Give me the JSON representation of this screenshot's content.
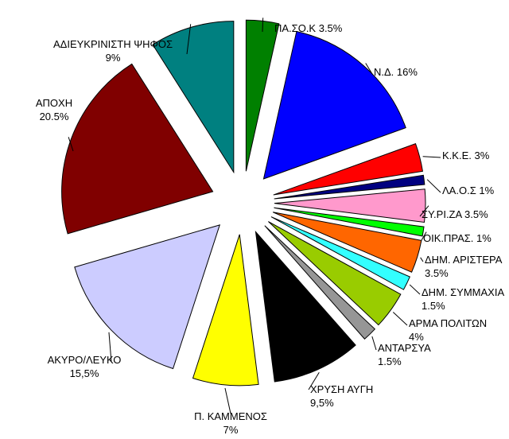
{
  "chart_data": {
    "type": "pie",
    "title": "",
    "unit": "%",
    "slices": [
      {
        "label": "ΠΑ.ΣΟ.Κ",
        "value_label": "3.5%",
        "value": 3.5,
        "color": "#008000"
      },
      {
        "label": "Ν.Δ.",
        "value_label": "16%",
        "value": 16,
        "color": "#0000ff"
      },
      {
        "label": "Κ.Κ.Ε.",
        "value_label": "3%",
        "value": 3,
        "color": "#ff0000"
      },
      {
        "label": "ΛΑ.Ο.Σ",
        "value_label": "1%",
        "value": 1,
        "color": "#000080"
      },
      {
        "label": "ΣΥ.ΡΙ.ΖΑ",
        "value_label": "3.5%",
        "value": 3.5,
        "color": "#ff99cc"
      },
      {
        "label": "ΟΙΚ.ΠΡΑΣ.",
        "value_label": "1%",
        "value": 1,
        "color": "#00ff00"
      },
      {
        "label": "ΔΗΜ. ΑΡΙΣΤΕΡΑ",
        "value_label": "3.5%",
        "value": 3.5,
        "color": "#ff6600"
      },
      {
        "label": "ΔΗΜ. ΣΥΜΜΑΧΙΑ",
        "value_label": "1.5%",
        "value": 1.5,
        "color": "#33ffff"
      },
      {
        "label": "ΑΡΜΑ ΠΟΛΙΤΩΝ",
        "value_label": "4%",
        "value": 4,
        "color": "#99cc00"
      },
      {
        "label": "ΑΝΤΑΡΣΥΑ",
        "value_label": "1.5%",
        "value": 1.5,
        "color": "#969696"
      },
      {
        "label": "ΧΡΥΣΗ ΑΥΓΗ",
        "value_label": "9,5%",
        "value": 9.5,
        "color": "#000000"
      },
      {
        "label": "Π. ΚΑΜΜΕΝΟΣ",
        "value_label": "7%",
        "value": 7,
        "color": "#ffff00"
      },
      {
        "label": "ΑΚΥΡΟ/ΛΕΥΚΟ",
        "value_label": "15,5%",
        "value": 15.5,
        "color": "#ccccff"
      },
      {
        "label": "ΑΠΟΧΗ",
        "value_label": "20.5%",
        "value": 20.5,
        "color": "#800000"
      },
      {
        "label": "ΑΔΙΕΥΚΡΙΝΙΣΤΗ ΨΗΦΟΣ",
        "value_label": "9%",
        "value": 9,
        "color": "#008080"
      }
    ]
  }
}
